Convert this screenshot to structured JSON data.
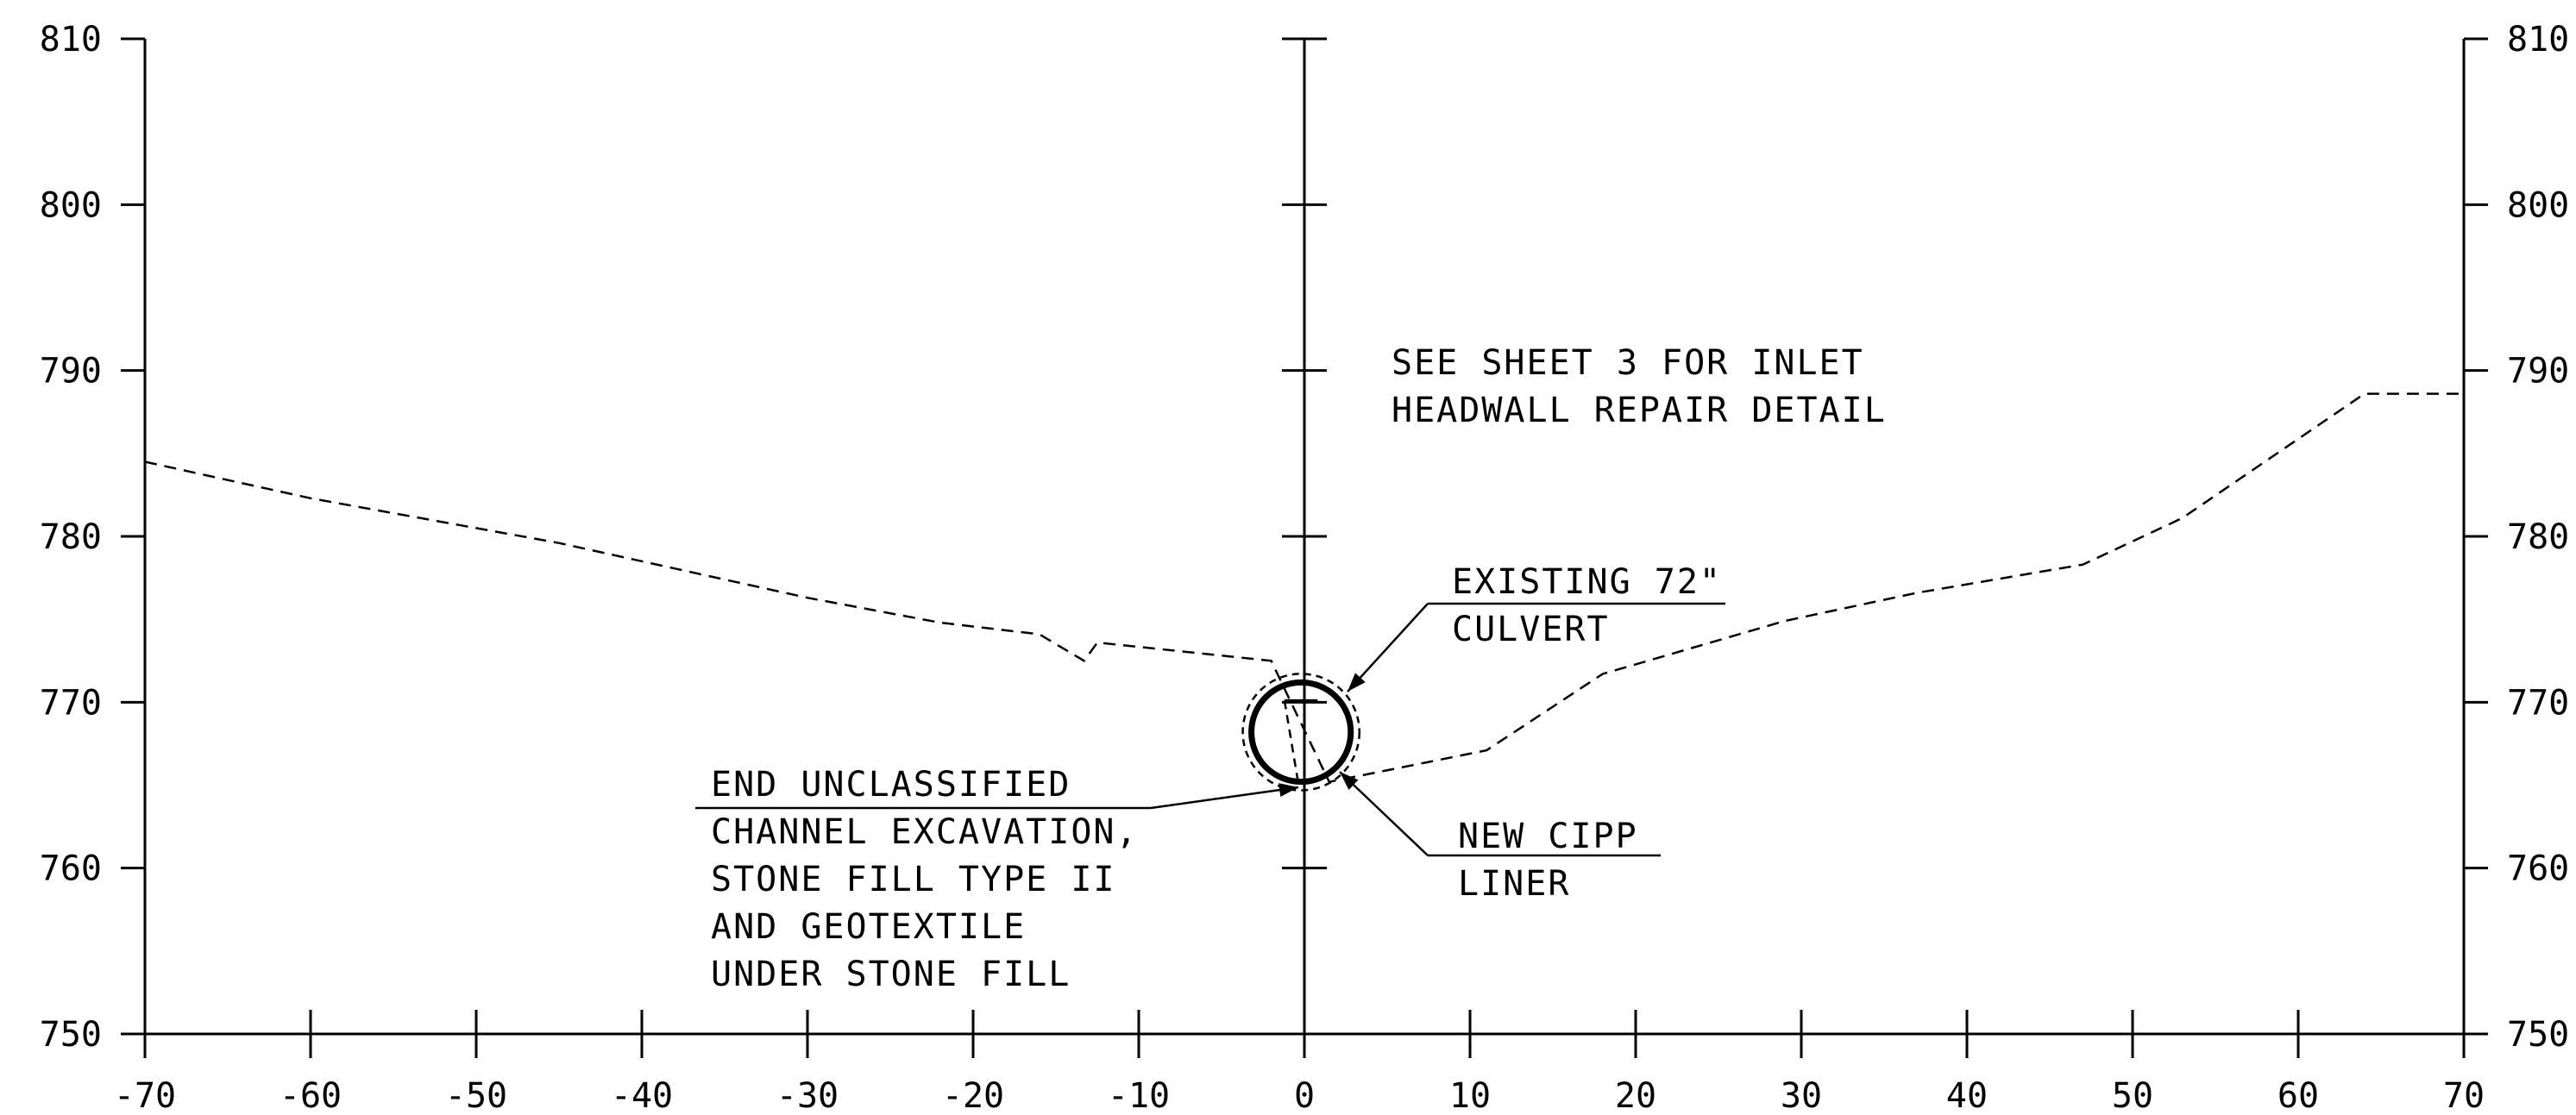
{
  "chart_data": {
    "type": "line",
    "xlim": [
      -70,
      70
    ],
    "ylim": [
      750,
      810
    ],
    "x_ticks": [
      -70,
      -60,
      -50,
      -40,
      -30,
      -20,
      -10,
      0,
      10,
      20,
      30,
      40,
      50,
      60,
      70
    ],
    "y_ticks": [
      750,
      760,
      770,
      780,
      790,
      800,
      810
    ],
    "x_tick_labels": [
      "-70",
      "-60",
      "-50",
      "-40",
      "-30",
      "-20",
      "-10",
      "0",
      "10",
      "20",
      "30",
      "40",
      "50",
      "60",
      "70"
    ],
    "y_tick_labels": [
      "750",
      "760",
      "770",
      "780",
      "790",
      "800",
      "810"
    ],
    "grid": false,
    "series": [
      {
        "style": "dashed",
        "x": [
          -70,
          -60,
          -45,
          -30,
          -22,
          -16,
          -13.3,
          -12.5,
          -2,
          -1.2,
          1.5,
          7.5,
          11,
          18,
          29,
          37,
          47,
          53,
          64,
          70
        ],
        "y": [
          784.5,
          782.3,
          779.6,
          776.3,
          774.8,
          774.1,
          772.5,
          773.6,
          772.5,
          770.8,
          765.2,
          766.4,
          767.1,
          771.7,
          774.9,
          776.6,
          778.3,
          781.1,
          788.6,
          788.6
        ]
      }
    ],
    "culvert": {
      "center": [
        -0.2,
        768.2
      ],
      "diameter": 6.0
    },
    "annotations": [
      {
        "lines": [
          "SEE SHEET 3 FOR INLET",
          "HEADWALL REPAIR DETAIL"
        ]
      },
      {
        "lines": [
          "EXISTING 72\"",
          "CULVERT"
        ]
      },
      {
        "lines": [
          "NEW CIPP",
          "LINER"
        ]
      },
      {
        "lines": [
          "END UNCLASSIFIED",
          "CHANNEL EXCAVATION,",
          "STONE FILL TYPE II",
          "AND GEOTEXTILE",
          "UNDER STONE FILL"
        ]
      }
    ]
  }
}
